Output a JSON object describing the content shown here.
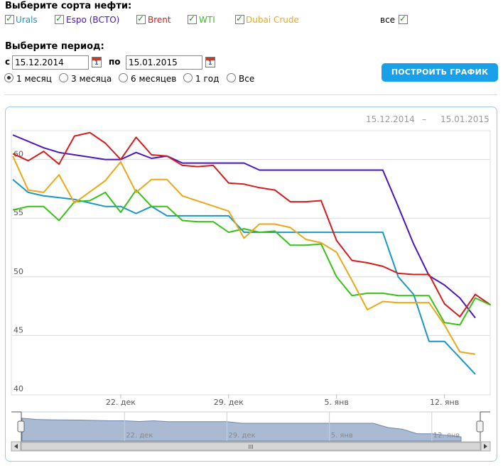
{
  "form": {
    "sorts_title": "Выберите сорта нефти:",
    "sorts": [
      {
        "label": "Urals",
        "checked": true,
        "color": "#1a96c4"
      },
      {
        "label": "Espo (ВСТО)",
        "checked": true,
        "color": "#4b16b8"
      },
      {
        "label": "Brent",
        "checked": true,
        "color": "#d31c1c"
      },
      {
        "label": "WTI",
        "checked": true,
        "color": "#39c018"
      },
      {
        "label": "Dubai Crude",
        "checked": true,
        "color": "#e8a818"
      }
    ],
    "all_label": "все",
    "all_checked": true,
    "period_title": "Выберите период:",
    "from_label": "с",
    "from_value": "15.12.2014",
    "to_label": "по",
    "to_value": "15.01.2015",
    "calendar_icon_text": "1",
    "period_options": [
      "1 месяц",
      "3 месяца",
      "6 месяцев",
      "1 год",
      "Все"
    ],
    "period_selected": "1 месяц",
    "build_button": "ПОСТРОИТЬ ГРАФИК"
  },
  "range_display": {
    "from": "15.12.2014",
    "separator": "–",
    "to": "15.01.2015"
  },
  "chart_data": {
    "type": "line",
    "x_ticks": [
      {
        "label": "22. дек",
        "day": 7
      },
      {
        "label": "29. дек",
        "day": 14
      },
      {
        "label": "5. янв",
        "day": 21
      },
      {
        "label": "12. янв",
        "day": 28
      }
    ],
    "ylim": [
      40,
      62.4
    ],
    "xlim": [
      0,
      30.8
    ],
    "y_ticks": [
      40,
      45,
      50,
      55,
      60
    ],
    "grid": true,
    "legend": "none",
    "series": [
      {
        "name": "Urals",
        "color": "#1a96c4",
        "points": [
          [
            0,
            58.3
          ],
          [
            1,
            57.2
          ],
          [
            2,
            56.9
          ],
          [
            4,
            56.6
          ],
          [
            6,
            56.0
          ],
          [
            7,
            56.0
          ],
          [
            8,
            55.4
          ],
          [
            9,
            56.0
          ],
          [
            10,
            55.2
          ],
          [
            14,
            55.2
          ],
          [
            15,
            53.8
          ],
          [
            24,
            53.8
          ],
          [
            25,
            50.0
          ],
          [
            26,
            48.5
          ],
          [
            27,
            44.5
          ],
          [
            28,
            44.5
          ],
          [
            30,
            41.7
          ]
        ]
      },
      {
        "name": "Espo (ВСТО)",
        "color": "#4b16b8",
        "points": [
          [
            0,
            62.1
          ],
          [
            2,
            61.0
          ],
          [
            3,
            60.6
          ],
          [
            6,
            60.0
          ],
          [
            7,
            60.0
          ],
          [
            8,
            60.6
          ],
          [
            9,
            60.1
          ],
          [
            10,
            60.3
          ],
          [
            11,
            59.7
          ],
          [
            15,
            59.7
          ],
          [
            16,
            59.1
          ],
          [
            24,
            59.1
          ],
          [
            25,
            56.0
          ],
          [
            26,
            52.8
          ],
          [
            27,
            50.1
          ],
          [
            28,
            49.3
          ],
          [
            29,
            48.2
          ],
          [
            30,
            46.5
          ]
        ]
      },
      {
        "name": "Brent",
        "color": "#d31c1c",
        "points": [
          [
            0,
            60.5
          ],
          [
            1,
            59.9
          ],
          [
            2,
            60.7
          ],
          [
            3,
            59.6
          ],
          [
            4,
            62.0
          ],
          [
            5,
            62.3
          ],
          [
            6,
            61.4
          ],
          [
            7,
            60.0
          ],
          [
            8,
            61.9
          ],
          [
            9,
            60.4
          ],
          [
            10,
            60.3
          ],
          [
            11,
            59.5
          ],
          [
            12,
            59.4
          ],
          [
            13,
            59.5
          ],
          [
            14,
            58.0
          ],
          [
            15,
            57.9
          ],
          [
            16,
            57.6
          ],
          [
            17,
            57.4
          ],
          [
            18,
            56.4
          ],
          [
            19,
            56.4
          ],
          [
            20,
            56.5
          ],
          [
            21,
            53.1
          ],
          [
            22,
            51.4
          ],
          [
            23,
            51.2
          ],
          [
            24,
            50.9
          ],
          [
            25,
            50.3
          ],
          [
            26,
            50.2
          ],
          [
            27,
            50.2
          ],
          [
            28,
            47.7
          ],
          [
            29,
            46.6
          ],
          [
            30,
            48.5
          ],
          [
            31,
            47.6
          ]
        ]
      },
      {
        "name": "WTI",
        "color": "#39c018",
        "points": [
          [
            0,
            55.7
          ],
          [
            1,
            56.0
          ],
          [
            2,
            56.0
          ],
          [
            3,
            54.8
          ],
          [
            4,
            56.4
          ],
          [
            5,
            56.5
          ],
          [
            6,
            57.2
          ],
          [
            7,
            55.5
          ],
          [
            8,
            57.4
          ],
          [
            9,
            56.0
          ],
          [
            10,
            56.0
          ],
          [
            11,
            54.8
          ],
          [
            12,
            54.7
          ],
          [
            13,
            54.7
          ],
          [
            14,
            53.8
          ],
          [
            15,
            54.1
          ],
          [
            16,
            53.8
          ],
          [
            17,
            53.9
          ],
          [
            18,
            52.7
          ],
          [
            19,
            52.7
          ],
          [
            20,
            52.8
          ],
          [
            21,
            50.0
          ],
          [
            22,
            48.4
          ],
          [
            23,
            48.6
          ],
          [
            24,
            48.6
          ],
          [
            25,
            48.4
          ],
          [
            26,
            48.4
          ],
          [
            27,
            48.4
          ],
          [
            28,
            46.1
          ],
          [
            29,
            45.9
          ],
          [
            30,
            48.2
          ],
          [
            31,
            47.6
          ]
        ]
      },
      {
        "name": "Dubai Crude",
        "color": "#e8a818",
        "points": [
          [
            0,
            60.3
          ],
          [
            1,
            57.4
          ],
          [
            2,
            57.2
          ],
          [
            3,
            58.7
          ],
          [
            4,
            56.3
          ],
          [
            6,
            58.2
          ],
          [
            7,
            59.8
          ],
          [
            8,
            57.2
          ],
          [
            9,
            58.3
          ],
          [
            10,
            58.3
          ],
          [
            11,
            56.9
          ],
          [
            14,
            55.6
          ],
          [
            15,
            53.3
          ],
          [
            16,
            54.5
          ],
          [
            17,
            54.5
          ],
          [
            18,
            54.2
          ],
          [
            19,
            53.2
          ],
          [
            20,
            52.9
          ],
          [
            21,
            52.1
          ],
          [
            22,
            49.7
          ],
          [
            23,
            47.2
          ],
          [
            24,
            47.9
          ],
          [
            25,
            47.8
          ],
          [
            26,
            47.8
          ],
          [
            27,
            47.8
          ],
          [
            28,
            45.9
          ],
          [
            29,
            43.6
          ],
          [
            30,
            43.4
          ]
        ]
      }
    ]
  },
  "navigator": {
    "labels": [
      "22. дек",
      "29. дек",
      "5. янв",
      "12. янв"
    ],
    "scroll_glyph": "III"
  }
}
